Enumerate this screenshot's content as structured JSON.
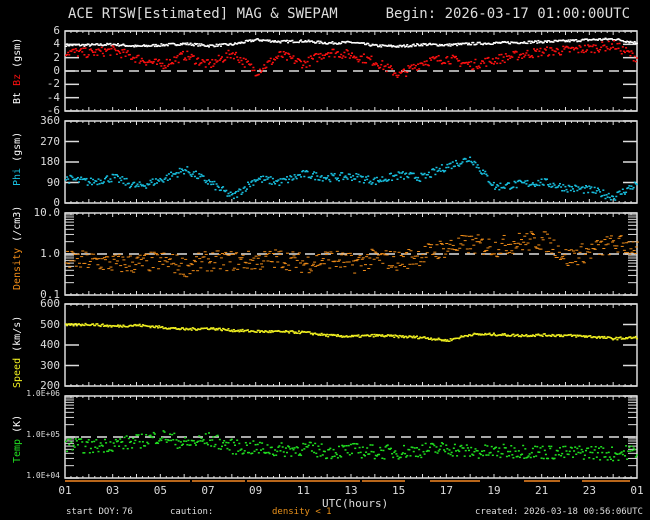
{
  "header": {
    "title": "ACE RTSW[Estimated] MAG & SWEPAM",
    "begin": "Begin: 2026-03-17 01:00:00UTC"
  },
  "footer": {
    "start_doy_label": "start DOY:",
    "start_doy_value": "76",
    "caution_label": "caution:",
    "caution_value": "density < 1",
    "created": "created: 2026-03-18 00:56:06UTC"
  },
  "colors": {
    "background": "#000000",
    "axis": "#dddddd",
    "bt": "#ffffff",
    "bz": "#ff1010",
    "phi": "#18c0e0",
    "density": "#f08c18",
    "speed": "#f0f020",
    "temp": "#20e020",
    "caution_bar": "#b8661a"
  },
  "chart_data": [
    {
      "type": "scatter",
      "panel": "magnetic-field",
      "ylabel_parts": [
        "Bt",
        "Bz",
        "(gsm)"
      ],
      "ylim": [
        -6,
        6
      ],
      "yticks": [
        "6",
        "4",
        "2",
        "0",
        "-2",
        "-4",
        "-6"
      ],
      "reference_line": 0,
      "x": [
        1,
        2,
        3,
        4,
        5,
        6,
        7,
        8,
        9,
        10,
        11,
        12,
        13,
        14,
        15,
        16,
        17,
        18,
        19,
        20,
        21,
        22,
        23,
        24,
        25
      ],
      "series": [
        {
          "name": "Bt",
          "values": [
            4.0,
            4.0,
            4.1,
            3.8,
            4.0,
            4.2,
            3.9,
            4.1,
            4.8,
            4.5,
            4.6,
            4.3,
            4.4,
            3.9,
            3.8,
            4.1,
            4.0,
            4.2,
            4.3,
            4.4,
            4.5,
            4.6,
            4.8,
            4.9,
            4.3
          ]
        },
        {
          "name": "Bz",
          "values": [
            3.0,
            2.8,
            3.2,
            2.0,
            1.0,
            2.5,
            1.0,
            2.8,
            0.0,
            2.5,
            1.2,
            3.0,
            2.5,
            1.5,
            -0.5,
            1.5,
            2.0,
            1.0,
            1.8,
            2.5,
            3.0,
            3.2,
            3.5,
            4.0,
            2.0
          ]
        }
      ]
    },
    {
      "type": "scatter",
      "panel": "phi",
      "ylabel_parts": [
        "Phi",
        "(gsm)"
      ],
      "ylim": [
        0,
        360
      ],
      "yticks": [
        "360",
        "270",
        "180",
        "90",
        "0"
      ],
      "x": [
        1,
        2,
        3,
        4,
        5,
        6,
        7,
        8,
        9,
        10,
        11,
        12,
        13,
        14,
        15,
        16,
        17,
        18,
        19,
        20,
        21,
        22,
        23,
        24,
        25
      ],
      "series": [
        {
          "name": "Phi",
          "values": [
            110,
            95,
            115,
            75,
            105,
            150,
            95,
            30,
            110,
            95,
            130,
            115,
            120,
            100,
            125,
            115,
            165,
            200,
            75,
            85,
            95,
            70,
            60,
            30,
            90
          ]
        }
      ]
    },
    {
      "type": "scatter",
      "panel": "density",
      "ylabel_parts": [
        "Density",
        "(/cm3)"
      ],
      "ylim": [
        0.1,
        10.0
      ],
      "scale": "log",
      "yticks": [
        "10.0",
        "1.0",
        "0.1"
      ],
      "reference_line": 1.0,
      "x": [
        1,
        2,
        3,
        4,
        5,
        6,
        7,
        8,
        9,
        10,
        11,
        12,
        13,
        14,
        15,
        16,
        17,
        18,
        19,
        20,
        21,
        22,
        23,
        24,
        25
      ],
      "series": [
        {
          "name": "Density",
          "values": [
            0.7,
            0.7,
            0.6,
            0.6,
            0.7,
            0.5,
            0.7,
            0.7,
            0.7,
            0.8,
            0.6,
            0.8,
            0.6,
            0.8,
            0.7,
            1.0,
            1.5,
            1.8,
            1.5,
            2.0,
            2.2,
            0.8,
            1.2,
            1.8,
            1.5
          ]
        }
      ]
    },
    {
      "type": "scatter",
      "panel": "speed",
      "ylabel_parts": [
        "Speed",
        "(km/s)"
      ],
      "ylim": [
        200,
        600
      ],
      "yticks": [
        "600",
        "500",
        "400",
        "300",
        "200"
      ],
      "x": [
        1,
        2,
        3,
        4,
        5,
        6,
        7,
        8,
        9,
        10,
        11,
        12,
        13,
        14,
        15,
        16,
        17,
        18,
        19,
        20,
        21,
        22,
        23,
        24,
        25
      ],
      "series": [
        {
          "name": "Speed",
          "values": [
            500,
            505,
            495,
            500,
            490,
            480,
            485,
            475,
            470,
            468,
            465,
            450,
            445,
            450,
            445,
            440,
            425,
            455,
            455,
            450,
            452,
            450,
            445,
            435,
            440
          ]
        }
      ]
    },
    {
      "type": "scatter",
      "panel": "temperature",
      "ylabel_parts": [
        "Temp",
        "(K)"
      ],
      "ylim": [
        10000,
        1000000
      ],
      "scale": "log",
      "yticks": [
        "1.0E+06",
        "1.0E+05",
        "1.0E+04"
      ],
      "reference_line": 100000,
      "x": [
        1,
        2,
        3,
        4,
        5,
        6,
        7,
        8,
        9,
        10,
        11,
        12,
        13,
        14,
        15,
        16,
        17,
        18,
        19,
        20,
        21,
        22,
        23,
        24,
        25
      ],
      "series": [
        {
          "name": "Temp",
          "values": [
            70000,
            60000,
            70000,
            80000,
            110000,
            70000,
            90000,
            60000,
            55000,
            50000,
            55000,
            45000,
            50000,
            45000,
            45000,
            50000,
            55000,
            45000,
            45000,
            48000,
            45000,
            42000,
            45000,
            40000,
            48000
          ]
        }
      ]
    }
  ],
  "xaxis": {
    "label": "UTC(hours)",
    "ticks": [
      "01",
      "03",
      "05",
      "07",
      "09",
      "11",
      "13",
      "15",
      "17",
      "19",
      "21",
      "23",
      "01"
    ]
  }
}
